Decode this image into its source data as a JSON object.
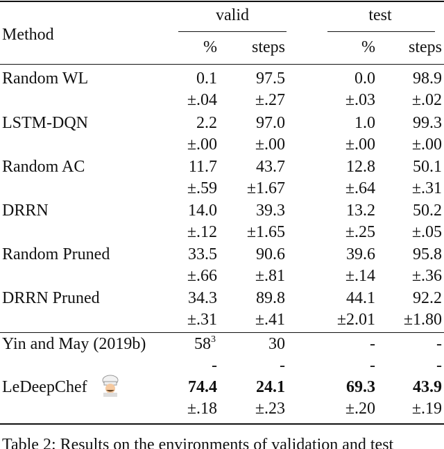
{
  "table": {
    "header": {
      "method": "Method",
      "groups": [
        "valid",
        "test"
      ],
      "subheaders": [
        "%",
        "steps",
        "%",
        "steps"
      ]
    },
    "rows": [
      {
        "method": "Random WL",
        "values": [
          "0.1",
          "97.5",
          "0.0",
          "98.9"
        ],
        "errors": [
          "±.04",
          "±.27",
          "±.03",
          "±.02"
        ]
      },
      {
        "method": "LSTM-DQN",
        "values": [
          "2.2",
          "97.0",
          "1.0",
          "99.3"
        ],
        "errors": [
          "±.00",
          "±.00",
          "±.00",
          "±.00"
        ]
      },
      {
        "method": "Random AC",
        "values": [
          "11.7",
          "43.7",
          "12.8",
          "50.1"
        ],
        "errors": [
          "±.59",
          "±1.67",
          "±.64",
          "±.31"
        ]
      },
      {
        "method": "DRRN",
        "values": [
          "14.0",
          "39.3",
          "13.2",
          "50.2"
        ],
        "errors": [
          "±.12",
          "±1.65",
          "±.25",
          "±.05"
        ]
      },
      {
        "method": "Random Pruned",
        "values": [
          "33.5",
          "90.6",
          "39.6",
          "95.8"
        ],
        "errors": [
          "±.66",
          "±.81",
          "±.14",
          "±.36"
        ]
      },
      {
        "method": "DRRN Pruned",
        "values": [
          "34.3",
          "89.8",
          "44.1",
          "92.2"
        ],
        "errors": [
          "±.31",
          "±.41",
          "±2.01",
          "±1.80"
        ]
      },
      {
        "method": "Yin and May (2019b)",
        "values": [
          "58",
          "30",
          "-",
          "-"
        ],
        "footnote": "3",
        "errors": [
          "-",
          "-",
          "-",
          "-"
        ]
      },
      {
        "method": "LeDeepChef",
        "values": [
          "74.4",
          "24.1",
          "69.3",
          "43.9"
        ],
        "errors": [
          "±.18",
          "±.23",
          "±.20",
          "±.19"
        ],
        "bold": true
      }
    ]
  },
  "caption": "Table 2: Results on the environments of validation and test"
}
